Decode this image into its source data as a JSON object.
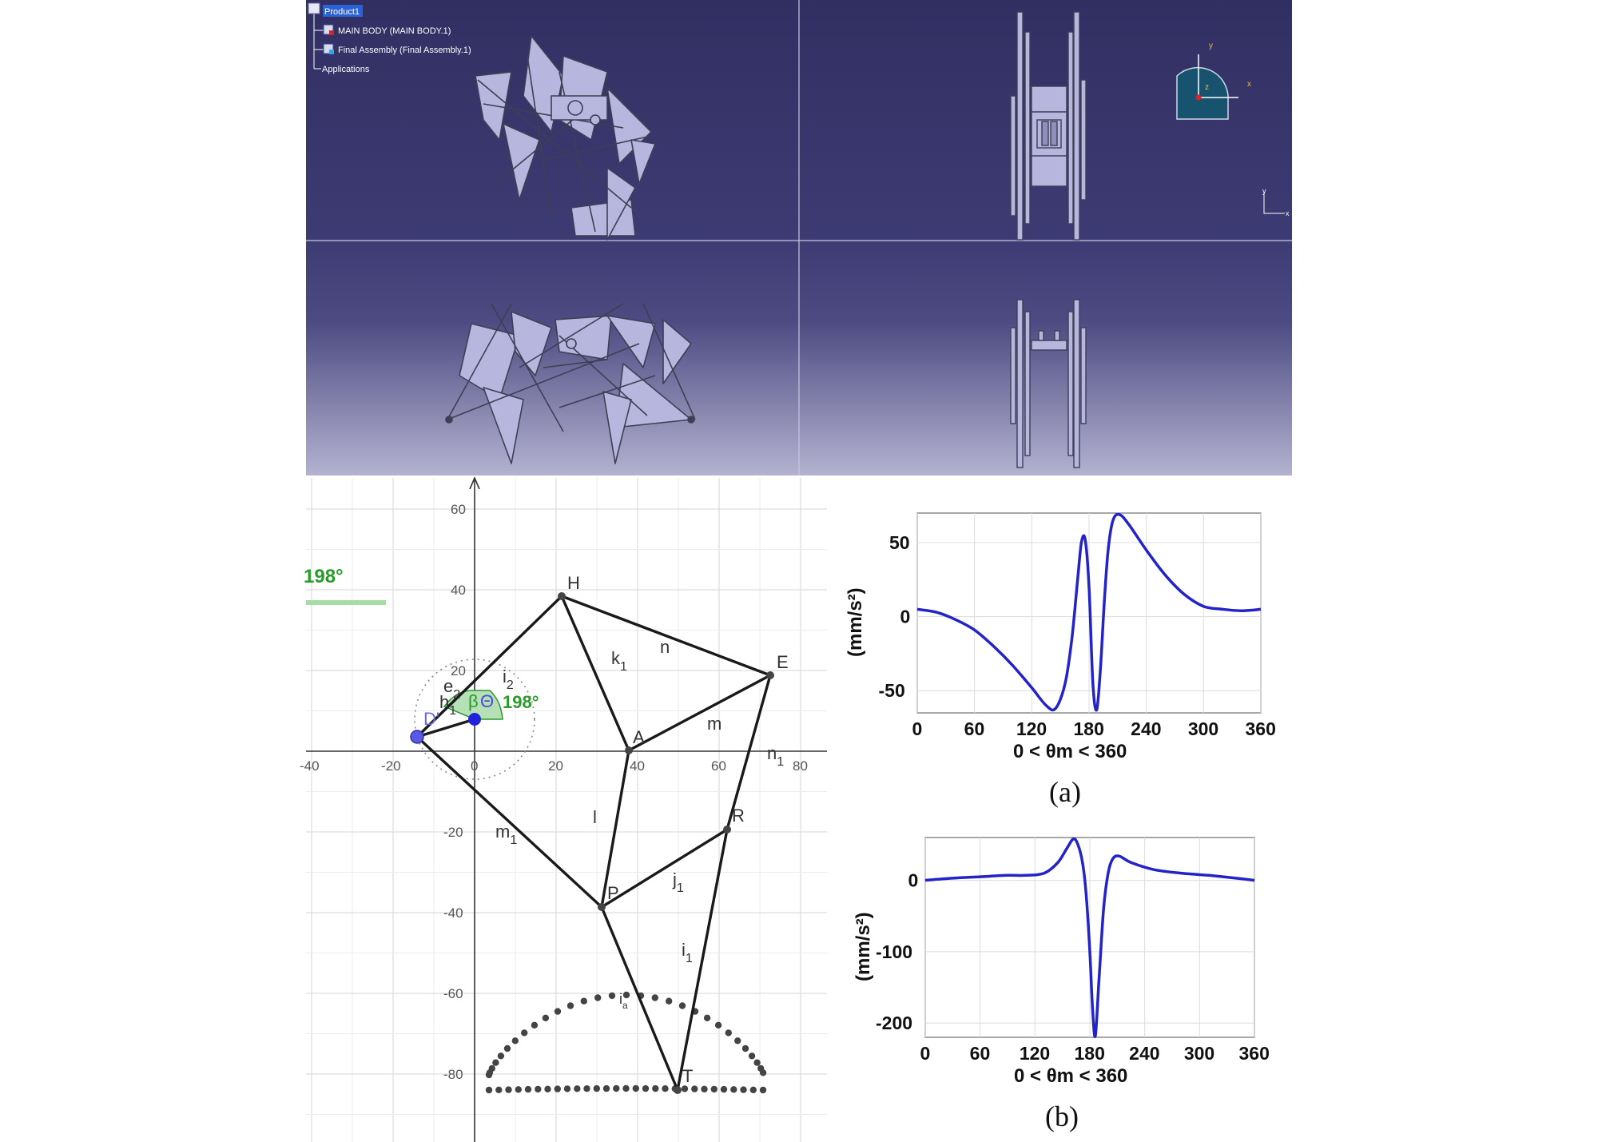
{
  "cad": {
    "tree": {
      "root": "Product1",
      "items": [
        "MAIN BODY (MAIN BODY.1)",
        "Final Assembly (Final Assembly.1)",
        "Applications"
      ]
    },
    "compass": {
      "y": "y",
      "x": "x",
      "z": "z"
    },
    "small_axes": {
      "y": "y",
      "x": "x"
    },
    "colors": {
      "bg_top": "#36346a",
      "bg_bottom": "#b0aecd",
      "part_fill": "#b6b6de",
      "part_stroke": "#3e3e55"
    }
  },
  "linkage": {
    "x_ticks": [
      "-40",
      "-20",
      "0",
      "20",
      "40",
      "60",
      "80"
    ],
    "y_ticks": [
      "60",
      "40",
      "20",
      "-20",
      "-40",
      "-60",
      "-80"
    ],
    "angle_side": "198°",
    "angle_label": "198°",
    "theta": "Θ",
    "beta": "β",
    "points": {
      "H": "H",
      "E": "E",
      "A": "A",
      "R": "R",
      "P": "P",
      "T": "T",
      "D": "D'"
    },
    "links": {
      "k": "k",
      "k_sub": "1",
      "n": "n",
      "m": "m",
      "l": "l",
      "i": "i",
      "i_sub": "2",
      "e": "e",
      "e_sub": "2",
      "h": "h",
      "h_sub": "1",
      "m1": "m",
      "m1_sub": "1",
      "n1": "n",
      "n1_sub": "1",
      "j": "j",
      "j_sub": "1",
      "i1": "i",
      "i1_sub": "1",
      "ia": "i",
      "ia_sub": "a"
    }
  },
  "chart_data": [
    {
      "type": "line",
      "caption": "(a)",
      "ylabel": "(mm/s²)",
      "xlabel": "0 < θm < 360",
      "x_ticks": [
        0,
        60,
        120,
        180,
        240,
        300,
        360
      ],
      "y_ticks": [
        50,
        0,
        -50
      ],
      "xlim": [
        0,
        360
      ],
      "ylim": [
        -65,
        70
      ],
      "grid": true,
      "series": [
        {
          "color": "#2323c8",
          "x": [
            0,
            20,
            40,
            60,
            80,
            100,
            120,
            135,
            145,
            155,
            162,
            168,
            172,
            176,
            180,
            184,
            188,
            192,
            196,
            200,
            205,
            212,
            222,
            240,
            260,
            280,
            300,
            320,
            340,
            360
          ],
          "y": [
            5,
            3,
            -2,
            -9,
            -20,
            -33,
            -48,
            -60,
            -62,
            -45,
            -15,
            25,
            50,
            52,
            20,
            -45,
            -63,
            -35,
            10,
            45,
            65,
            69,
            62,
            45,
            28,
            15,
            7,
            5,
            4,
            5
          ]
        }
      ]
    },
    {
      "type": "line",
      "caption": "(b)",
      "ylabel": "(mm/s²)",
      "xlabel": "0 < θm < 360",
      "x_ticks": [
        0,
        60,
        120,
        180,
        240,
        300,
        360
      ],
      "y_ticks": [
        0,
        -100,
        -200
      ],
      "xlim": [
        0,
        360
      ],
      "ylim": [
        -220,
        60
      ],
      "grid": true,
      "series": [
        {
          "color": "#2323c8",
          "x": [
            0,
            30,
            60,
            90,
            110,
            130,
            145,
            155,
            162,
            167,
            172,
            176,
            180,
            183,
            186,
            190,
            195,
            200,
            205,
            212,
            225,
            250,
            280,
            310,
            340,
            360
          ],
          "y": [
            0,
            3,
            5,
            7,
            7,
            10,
            25,
            45,
            58,
            50,
            25,
            -20,
            -100,
            -180,
            -218,
            -140,
            -40,
            10,
            30,
            34,
            25,
            15,
            10,
            7,
            3,
            0
          ]
        }
      ]
    }
  ]
}
